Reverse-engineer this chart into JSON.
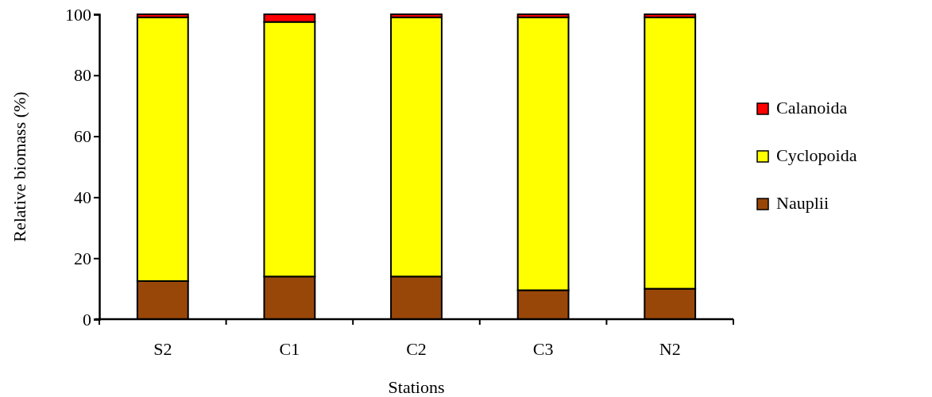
{
  "chart_data": {
    "type": "bar",
    "stacked": true,
    "xlabel": "Stations",
    "ylabel": "Relative biomass (%)",
    "categories": [
      "S2",
      "C1",
      "C2",
      "C3",
      "N2"
    ],
    "series": [
      {
        "name": "Nauplii",
        "color": "#994709",
        "values": [
          12.5,
          14,
          14,
          9.5,
          10
        ]
      },
      {
        "name": "Cyclopoida",
        "color": "#ffff00",
        "values": [
          86.5,
          83.5,
          85,
          89.5,
          89
        ]
      },
      {
        "name": "Calanoida",
        "color": "#ff0000",
        "values": [
          1,
          2.5,
          1,
          1,
          1
        ]
      }
    ],
    "ylim": [
      0,
      100
    ],
    "yticks": [
      0,
      20,
      40,
      60,
      80,
      100
    ],
    "grid": false,
    "legend": "right"
  }
}
